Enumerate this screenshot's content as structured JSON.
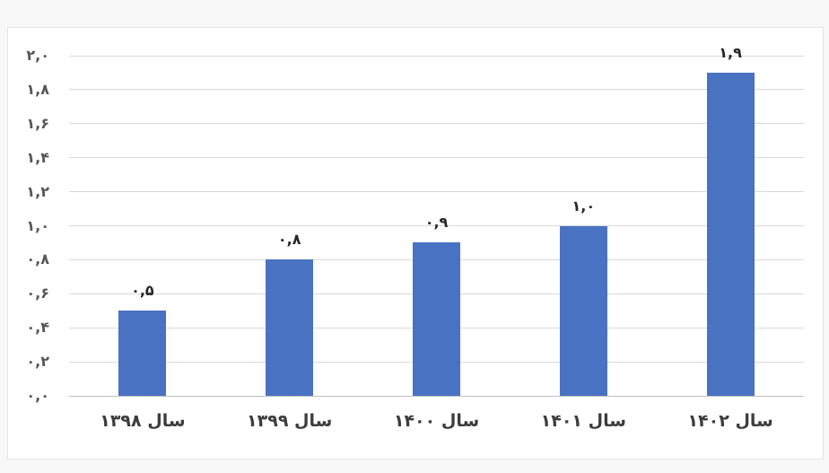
{
  "page": {
    "background": "#f8f8f8"
  },
  "chart_panel": {
    "background": "#ffffff",
    "border_color": "#e3e3e3"
  },
  "chart_data": {
    "type": "bar",
    "title": "",
    "xlabel": "",
    "ylabel": "",
    "categories": [
      "سال ۱۳۹۸",
      "سال ۱۳۹۹",
      "سال ۱۴۰۰",
      "سال ۱۴۰۱",
      "سال ۱۴۰۲"
    ],
    "values": [
      0.5,
      0.8,
      0.9,
      1.0,
      1.9
    ],
    "bar_labels": [
      "۰,۵",
      "۰,۸",
      "۰,۹",
      "۱,۰",
      "۱,۹"
    ],
    "y_tick_labels": [
      "۲,۰",
      "۱,۸",
      "۱,۶",
      "۱,۴",
      "۱,۲",
      "۱,۰",
      "۰,۸",
      "۰,۶",
      "۰,۴",
      "۰,۲",
      "۰,۰"
    ],
    "y_tick_values": [
      2.0,
      1.8,
      1.6,
      1.4,
      1.2,
      1.0,
      0.8,
      0.6,
      0.4,
      0.2,
      0.0
    ],
    "ylim": [
      0,
      2.0
    ],
    "grid": true,
    "legend": "none",
    "text_direction": "rtl",
    "bar_color": "#4a72c2",
    "gridline_color": "#d9d9d9",
    "axis_line_color": "#bfbfbf",
    "y_tick_color": "#565656",
    "bar_label_color": "#262626",
    "category_label_color": "#3d3d3d"
  }
}
